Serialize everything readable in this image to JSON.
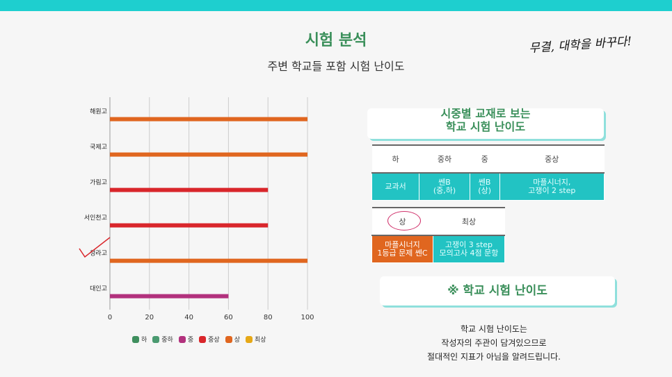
{
  "header": {
    "title": "시험 분석",
    "subtitle": "주변 학교들 포함 시험 난이도",
    "slogan": "무결, 대학을 바꾸다!"
  },
  "colors": {
    "accent": "#1ecfcf",
    "title_green": "#3a8f5a"
  },
  "chart_data": {
    "type": "bar",
    "orientation": "horizontal",
    "categories": [
      "해원고",
      "국제고",
      "가림고",
      "서인천고",
      "청라고",
      "대인고"
    ],
    "values": [
      100,
      100,
      80,
      80,
      100,
      60
    ],
    "bar_levels": [
      "상",
      "상",
      "중상",
      "중상",
      "상",
      "중"
    ],
    "xlim": [
      0,
      100
    ],
    "xticks": [
      "0",
      "20",
      "40",
      "60",
      "80",
      "100"
    ],
    "grid": true,
    "legend_position": "bottom",
    "legend": [
      {
        "label": "하",
        "color": "#3f8f5e"
      },
      {
        "label": "중하",
        "color": "#4a9a70"
      },
      {
        "label": "중",
        "color": "#b2317d"
      },
      {
        "label": "중상",
        "color": "#d9262b"
      },
      {
        "label": "상",
        "color": "#e0661f"
      },
      {
        "label": "최상",
        "color": "#e6a817"
      }
    ]
  },
  "panel_textbook": {
    "title_line1": "시중별 교재로 보는",
    "title_line2": "학교 시험 난이도"
  },
  "table_levels": {
    "headers": [
      "하",
      "중하",
      "중",
      "중상"
    ],
    "cells": [
      [
        "교과서"
      ],
      [
        "쎈B",
        "(중,하)"
      ],
      [
        "쎈B",
        "(상)"
      ],
      [
        "마플시너지,",
        "고쟁이 2 step"
      ]
    ]
  },
  "table_levels2": {
    "headers": [
      "상",
      "최상"
    ],
    "cells": [
      [
        "마플시너지",
        "1등급 문제 쎈C"
      ],
      [
        "고쟁이 3 step",
        "모의고사 4점 문항"
      ]
    ]
  },
  "panel_difficulty": {
    "title": "※ 학교 시험 난이도"
  },
  "note": {
    "line1": "학교 시험 난이도는",
    "line2": "작성자의 주관이 담겨있으므로",
    "line3": "절대적인 지표가 아님을 알려드립니다."
  }
}
